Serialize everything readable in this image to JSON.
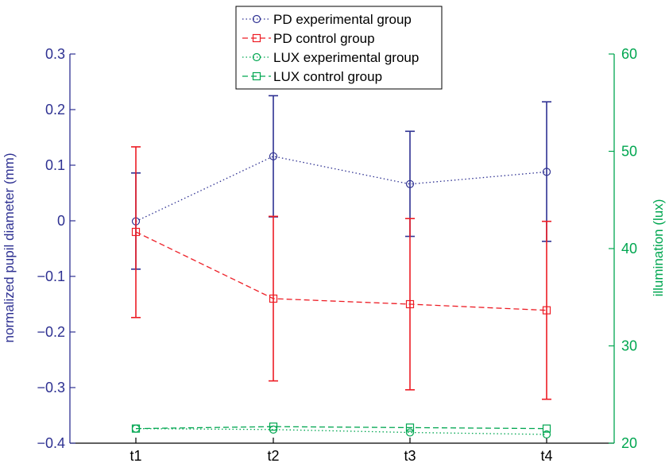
{
  "chart_data": {
    "type": "line",
    "categories": [
      "t1",
      "t2",
      "t3",
      "t4"
    ],
    "y_left": {
      "label": "normalized pupil diameter (mm)",
      "ylim": [
        -0.4,
        0.3
      ],
      "ticks": [
        -0.4,
        -0.3,
        -0.2,
        -0.1,
        0,
        0.1,
        0.2,
        0.3
      ],
      "tick_labels": [
        "−0.4",
        "−0.3",
        "−0.2",
        "−0.1",
        "0",
        "0.1",
        "0.2",
        "0.3"
      ],
      "color": "#2e3192"
    },
    "y_right": {
      "label": "illumination (lux)",
      "ylim": [
        20,
        60
      ],
      "ticks": [
        20,
        30,
        40,
        50,
        60
      ],
      "tick_labels": [
        "20",
        "30",
        "40",
        "50",
        "60"
      ],
      "color": "#00a650"
    },
    "series": [
      {
        "name": "PD experimental group",
        "axis": "left",
        "values": [
          -0.001,
          0.116,
          0.066,
          0.088
        ],
        "error_low": [
          -0.087,
          0.007,
          -0.028,
          -0.037
        ],
        "error_high": [
          0.086,
          0.225,
          0.161,
          0.214
        ],
        "color": "#2e3192",
        "line_style": "dotted",
        "marker": "circle"
      },
      {
        "name": "PD control group",
        "axis": "left",
        "values": [
          -0.02,
          -0.14,
          -0.15,
          -0.161
        ],
        "error_low": [
          -0.174,
          -0.288,
          -0.304,
          -0.321
        ],
        "error_high": [
          0.133,
          0.008,
          0.004,
          -0.001
        ],
        "color": "#ed1c24",
        "line_style": "dashed",
        "marker": "square"
      },
      {
        "name": "LUX experimental group",
        "axis": "right",
        "values": [
          21.5,
          21.4,
          21.1,
          20.9
        ],
        "color": "#00a650",
        "line_style": "dotted",
        "marker": "circle"
      },
      {
        "name": "LUX control group",
        "axis": "right",
        "values": [
          21.5,
          21.7,
          21.6,
          21.5
        ],
        "color": "#00a650",
        "line_style": "dashed",
        "marker": "square"
      }
    ],
    "legend": {
      "position": "top-center",
      "entries": [
        "PD experimental group",
        "PD control group",
        "LUX experimental group",
        "LUX control group"
      ]
    },
    "grid": false
  }
}
